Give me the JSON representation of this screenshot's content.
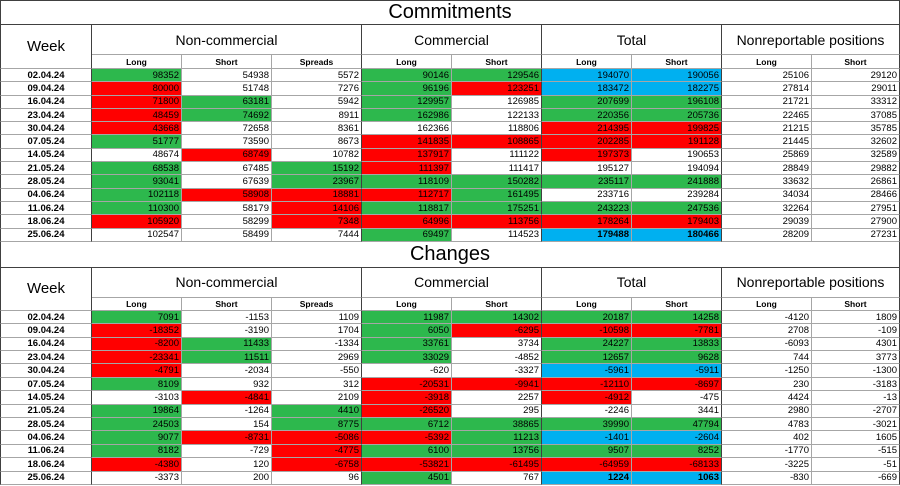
{
  "colors": {
    "green": "#2db84d",
    "red": "#ff0000",
    "blue": "#00b0f0"
  },
  "chart_data": [
    {
      "type": "table",
      "title": "Commitments",
      "week_header": "Week",
      "groups": [
        {
          "label": "Non-commercial",
          "columns": [
            "Long",
            "Short",
            "Spreads"
          ]
        },
        {
          "label": "Commercial",
          "columns": [
            "Long",
            "Short"
          ]
        },
        {
          "label": "Total",
          "columns": [
            "Long",
            "Short"
          ]
        },
        {
          "label": "Nonreportable positions",
          "columns": [
            "Long",
            "Short"
          ]
        }
      ],
      "rows": [
        {
          "week": "02.04.24",
          "values": [
            98352,
            54938,
            5572,
            90146,
            129546,
            194070,
            190056,
            25106,
            29120
          ],
          "highlights": [
            "green",
            null,
            null,
            "green",
            "green",
            "blue",
            "blue",
            null,
            null
          ]
        },
        {
          "week": "09.04.24",
          "values": [
            80000,
            51748,
            7276,
            96196,
            123251,
            183472,
            182275,
            27814,
            29011
          ],
          "highlights": [
            "red",
            null,
            null,
            "green",
            "red",
            "blue",
            "blue",
            null,
            null
          ]
        },
        {
          "week": "16.04.24",
          "values": [
            71800,
            63181,
            5942,
            129957,
            126985,
            207699,
            196108,
            21721,
            33312
          ],
          "highlights": [
            "red",
            "green",
            null,
            "green",
            null,
            "green",
            "green",
            null,
            null
          ]
        },
        {
          "week": "23.04.24",
          "values": [
            48459,
            74692,
            8911,
            162986,
            122133,
            220356,
            205736,
            22465,
            37085
          ],
          "highlights": [
            "red",
            "green",
            null,
            "green",
            null,
            "green",
            "green",
            null,
            null
          ]
        },
        {
          "week": "30.04.24",
          "values": [
            43668,
            72658,
            8361,
            162366,
            118806,
            214395,
            199825,
            21215,
            35785
          ],
          "highlights": [
            "red",
            null,
            null,
            null,
            null,
            "red",
            "red",
            null,
            null
          ]
        },
        {
          "week": "07.05.24",
          "values": [
            51777,
            73590,
            8673,
            141835,
            108865,
            202285,
            191128,
            21445,
            32602
          ],
          "highlights": [
            "green",
            null,
            null,
            "red",
            "red",
            "red",
            "red",
            null,
            null
          ]
        },
        {
          "week": "14.05.24",
          "values": [
            48674,
            68749,
            10782,
            137917,
            111122,
            197373,
            190653,
            25869,
            32589
          ],
          "highlights": [
            null,
            "red",
            null,
            "red",
            null,
            "red",
            null,
            null,
            null
          ]
        },
        {
          "week": "21.05.24",
          "values": [
            68538,
            67485,
            15192,
            111397,
            111417,
            195127,
            194094,
            28849,
            29882
          ],
          "highlights": [
            "green",
            null,
            "green",
            "red",
            null,
            null,
            null,
            null,
            null
          ]
        },
        {
          "week": "28.05.24",
          "values": [
            93041,
            67639,
            23967,
            118109,
            150282,
            235117,
            241888,
            33632,
            26861
          ],
          "highlights": [
            "green",
            null,
            "green",
            "green",
            "green",
            "green",
            "green",
            null,
            null
          ]
        },
        {
          "week": "04.06.24",
          "values": [
            102118,
            58908,
            18881,
            112717,
            161495,
            233716,
            239284,
            34034,
            28466
          ],
          "highlights": [
            "green",
            "red",
            "red",
            "red",
            "green",
            null,
            null,
            null,
            null
          ]
        },
        {
          "week": "11.06.24",
          "values": [
            110300,
            58179,
            14106,
            118817,
            175251,
            243223,
            247536,
            32264,
            27951
          ],
          "highlights": [
            "green",
            null,
            "red",
            "green",
            "green",
            "green",
            "green",
            null,
            null
          ]
        },
        {
          "week": "18.06.24",
          "values": [
            105920,
            58299,
            7348,
            64996,
            113756,
            178264,
            179403,
            29039,
            27900
          ],
          "highlights": [
            "red",
            null,
            "red",
            "red",
            "red",
            "red",
            "red",
            null,
            null
          ]
        },
        {
          "week": "25.06.24",
          "values": [
            102547,
            58499,
            7444,
            69497,
            114523,
            179488,
            180466,
            28209,
            27231
          ],
          "highlights": [
            null,
            null,
            null,
            "green",
            null,
            "blue",
            "blue",
            null,
            null
          ]
        }
      ]
    },
    {
      "type": "table",
      "title": "Changes",
      "week_header": "Week",
      "groups": [
        {
          "label": "Non-commercial",
          "columns": [
            "Long",
            "Short",
            "Spreads"
          ]
        },
        {
          "label": "Commercial",
          "columns": [
            "Long",
            "Short"
          ]
        },
        {
          "label": "Total",
          "columns": [
            "Long",
            "Short"
          ]
        },
        {
          "label": "Nonreportable positions",
          "columns": [
            "Long",
            "Short"
          ]
        }
      ],
      "rows": [
        {
          "week": "02.04.24",
          "values": [
            7091,
            -1153,
            1109,
            11987,
            14302,
            20187,
            14258,
            -4120,
            1809
          ],
          "highlights": [
            "green",
            null,
            null,
            "green",
            "green",
            "green",
            "green",
            null,
            null
          ]
        },
        {
          "week": "09.04.24",
          "values": [
            -18352,
            -3190,
            1704,
            6050,
            -6295,
            -10598,
            -7781,
            2708,
            -109
          ],
          "highlights": [
            "red",
            null,
            null,
            "green",
            "red",
            "red",
            "red",
            null,
            null
          ]
        },
        {
          "week": "16.04.24",
          "values": [
            -8200,
            11433,
            -1334,
            33761,
            3734,
            24227,
            13833,
            -6093,
            4301
          ],
          "highlights": [
            "red",
            "green",
            null,
            "green",
            null,
            "green",
            "green",
            null,
            null
          ]
        },
        {
          "week": "23.04.24",
          "values": [
            -23341,
            11511,
            2969,
            33029,
            -4852,
            12657,
            9628,
            744,
            3773
          ],
          "highlights": [
            "red",
            "green",
            null,
            "green",
            null,
            "green",
            "green",
            null,
            null
          ]
        },
        {
          "week": "30.04.24",
          "values": [
            -4791,
            -2034,
            -550,
            -620,
            -3327,
            -5961,
            -5911,
            -1250,
            -1300
          ],
          "highlights": [
            "red",
            null,
            null,
            null,
            null,
            "blue",
            "blue",
            null,
            null
          ]
        },
        {
          "week": "07.05.24",
          "values": [
            8109,
            932,
            312,
            -20531,
            -9941,
            -12110,
            -8697,
            230,
            -3183
          ],
          "highlights": [
            "green",
            null,
            null,
            "red",
            "red",
            "red",
            "red",
            null,
            null
          ]
        },
        {
          "week": "14.05.24",
          "values": [
            -3103,
            -4841,
            2109,
            -3918,
            2257,
            -4912,
            -475,
            4424,
            -13
          ],
          "highlights": [
            null,
            "red",
            null,
            "red",
            null,
            "red",
            null,
            null,
            null
          ]
        },
        {
          "week": "21.05.24",
          "values": [
            19864,
            -1264,
            4410,
            -26520,
            295,
            -2246,
            3441,
            2980,
            -2707
          ],
          "highlights": [
            "green",
            null,
            "green",
            "red",
            null,
            null,
            null,
            null,
            null
          ]
        },
        {
          "week": "28.05.24",
          "values": [
            24503,
            154,
            8775,
            6712,
            38865,
            39990,
            47794,
            4783,
            -3021
          ],
          "highlights": [
            "green",
            null,
            "green",
            "green",
            "green",
            "green",
            "green",
            null,
            null
          ]
        },
        {
          "week": "04.06.24",
          "values": [
            9077,
            -8731,
            -5086,
            -5392,
            11213,
            -1401,
            -2604,
            402,
            1605
          ],
          "highlights": [
            "green",
            "red",
            "red",
            "red",
            "green",
            "blue",
            "blue",
            null,
            null
          ]
        },
        {
          "week": "11.06.24",
          "values": [
            8182,
            -729,
            -4775,
            6100,
            13756,
            9507,
            8252,
            -1770,
            -515
          ],
          "highlights": [
            "green",
            null,
            "red",
            "green",
            "green",
            "green",
            "green",
            null,
            null
          ]
        },
        {
          "week": "18.06.24",
          "values": [
            -4380,
            120,
            -6758,
            -53821,
            -61495,
            -64959,
            -68133,
            -3225,
            -51
          ],
          "highlights": [
            "red",
            null,
            "red",
            "red",
            "red",
            "red",
            "red",
            null,
            null
          ]
        },
        {
          "week": "25.06.24",
          "values": [
            -3373,
            200,
            96,
            4501,
            767,
            1224,
            1063,
            -830,
            -669
          ],
          "highlights": [
            null,
            null,
            null,
            "green",
            null,
            "blue",
            "blue",
            null,
            null
          ]
        }
      ]
    }
  ]
}
